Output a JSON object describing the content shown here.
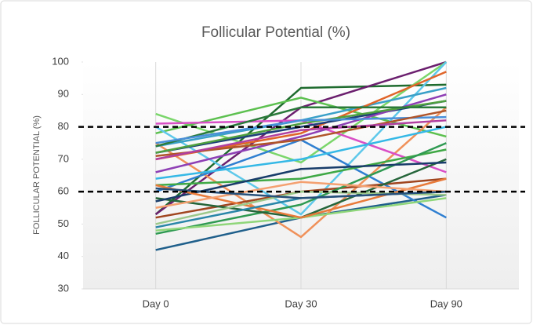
{
  "chart_data": {
    "type": "line",
    "title": "Follicular Potential (%)",
    "y_label": "FOLLICULAR POTENTIAL (%)",
    "categories": [
      "Day 0",
      "Day 30",
      "Day 90"
    ],
    "ylim": [
      30,
      100
    ],
    "yticks": [
      30,
      40,
      50,
      60,
      70,
      80,
      90,
      100
    ],
    "reference_lines": [
      {
        "value": 80
      },
      {
        "value": 60
      }
    ],
    "series": [
      {
        "color": "#1f5f8b",
        "values": [
          42,
          52,
          59
        ]
      },
      {
        "color": "#1e6b2e",
        "values": [
          53,
          92,
          93
        ]
      },
      {
        "color": "#6b1f6e",
        "values": [
          53,
          86,
          100
        ]
      },
      {
        "color": "#7ad66a",
        "values": [
          84,
          69,
          100
        ]
      },
      {
        "color": "#5cc04f",
        "values": [
          78,
          89,
          77
        ]
      },
      {
        "color": "#5ec8ea",
        "values": [
          80,
          53,
          100
        ]
      },
      {
        "color": "#f0915a",
        "values": [
          75,
          46,
          86
        ]
      },
      {
        "color": "#d94fc6",
        "values": [
          81,
          82,
          66
        ]
      },
      {
        "color": "#2f7fd1",
        "values": [
          60,
          76,
          52
        ]
      },
      {
        "color": "#3aa0c8",
        "values": [
          74,
          82,
          92
        ]
      },
      {
        "color": "#e0652a",
        "values": [
          70,
          78,
          97
        ]
      },
      {
        "color": "#a0451f",
        "values": [
          52,
          60,
          64
        ]
      },
      {
        "color": "#3fa845",
        "values": [
          62,
          64,
          73
        ]
      },
      {
        "color": "#2f9a52",
        "values": [
          47,
          56,
          75
        ]
      },
      {
        "color": "#25653a",
        "values": [
          58,
          52,
          70
        ]
      },
      {
        "color": "#34b8e6",
        "values": [
          64,
          70,
          80
        ]
      },
      {
        "color": "#1d3f7a",
        "values": [
          72,
          80,
          88
        ]
      },
      {
        "color": "#8e3fb5",
        "values": [
          66,
          77,
          90
        ]
      },
      {
        "color": "#8fd67a",
        "values": [
          48,
          52,
          58
        ]
      },
      {
        "color": "#183c6a",
        "values": [
          57,
          67,
          69
        ]
      },
      {
        "color": "#e87a3a",
        "values": [
          62,
          52,
          64
        ]
      },
      {
        "color": "#2a86a8",
        "values": [
          49,
          58,
          60
        ]
      },
      {
        "color": "#f4a070",
        "values": [
          55,
          63,
          60
        ]
      },
      {
        "color": "#4fa03f",
        "values": [
          72,
          81,
          88
        ]
      },
      {
        "color": "#2a7a3a",
        "values": [
          74,
          86,
          86
        ]
      },
      {
        "color": "#4a90d9",
        "values": [
          75,
          82,
          83
        ]
      },
      {
        "color": "#b0552a",
        "values": [
          71,
          76,
          85
        ]
      },
      {
        "color": "#9cc88a",
        "values": [
          50,
          60,
          59
        ]
      },
      {
        "color": "#27507a",
        "values": [
          61,
          58,
          60
        ]
      },
      {
        "color": "#b03fa0",
        "values": [
          70,
          79,
          82
        ]
      }
    ]
  }
}
